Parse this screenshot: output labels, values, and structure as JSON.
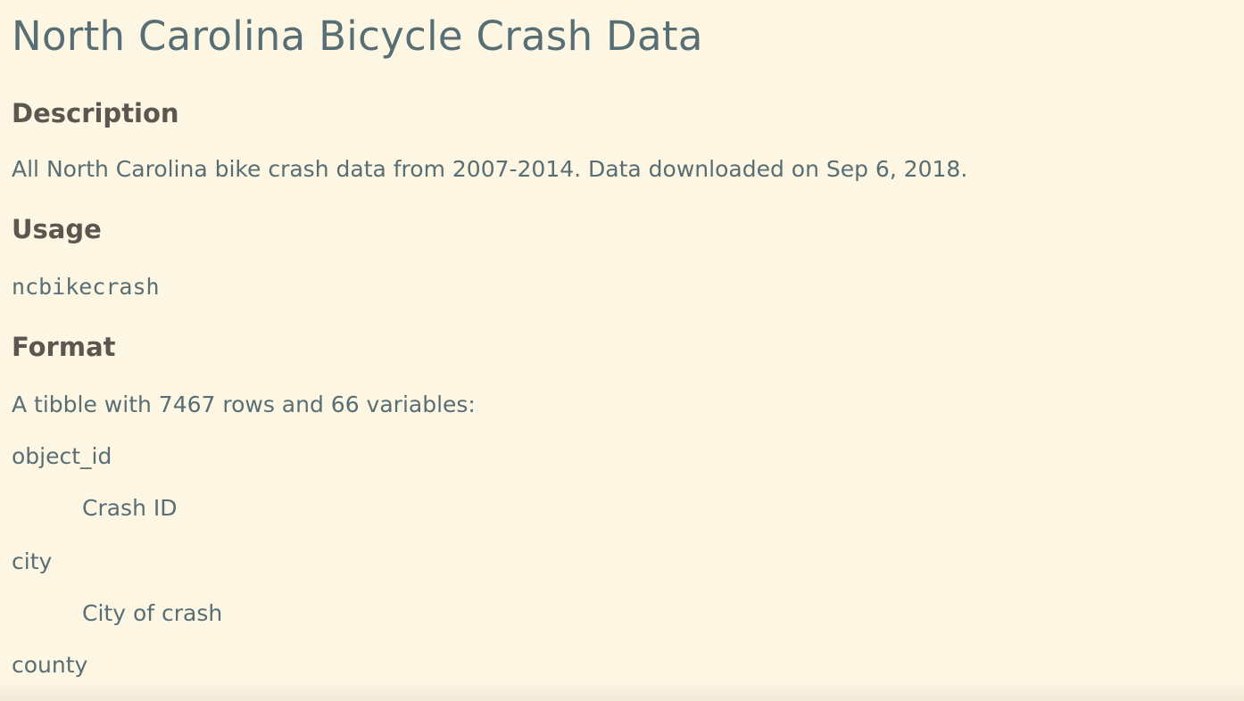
{
  "title": "North Carolina Bicycle Crash Data",
  "sections": {
    "description": {
      "heading": "Description",
      "text": "All North Carolina bike crash data from 2007-2014. Data downloaded on Sep 6, 2018."
    },
    "usage": {
      "heading": "Usage",
      "code": "ncbikecrash"
    },
    "format": {
      "heading": "Format",
      "intro": "A tibble with 7467 rows and 66 variables:",
      "variables": [
        {
          "name": "object_id",
          "description": "Crash ID"
        },
        {
          "name": "city",
          "description": "City of crash"
        },
        {
          "name": "county",
          "description": ""
        }
      ]
    }
  }
}
